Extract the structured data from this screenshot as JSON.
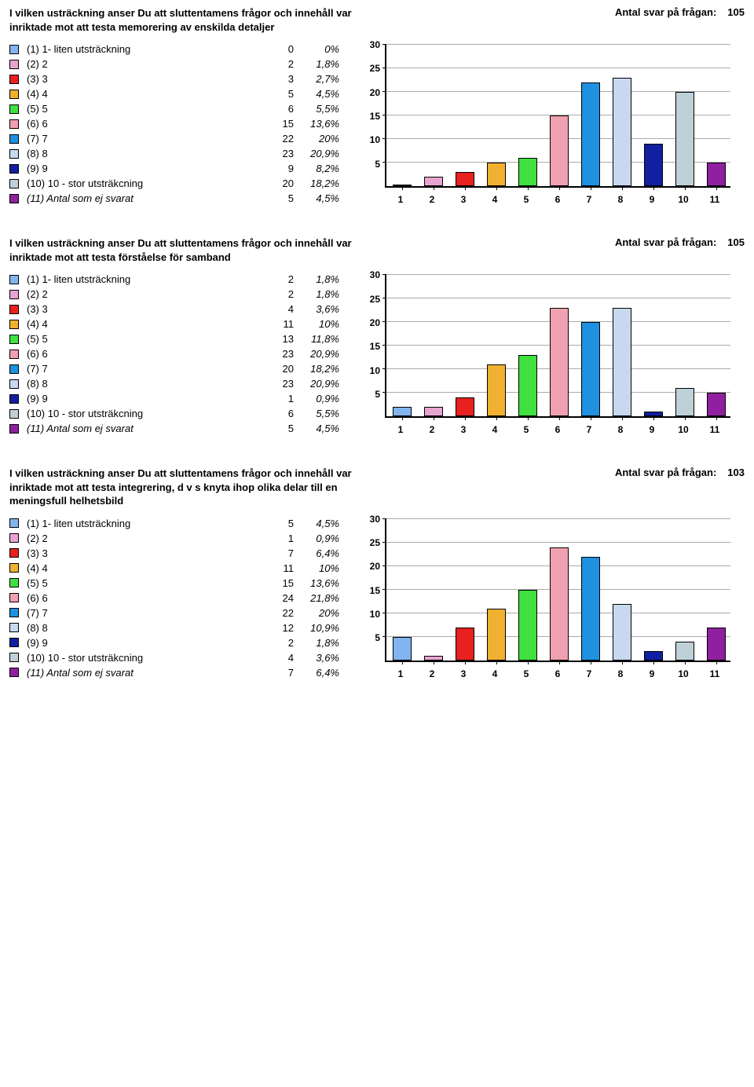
{
  "labels": {
    "response_prefix": "Antal svar på frågan:"
  },
  "colors": [
    "#82b4f0",
    "#e8a4d0",
    "#e82020",
    "#f0b030",
    "#40e040",
    "#f0a0b0",
    "#2090e0",
    "#c8d8f0",
    "#1020a0",
    "#c0d0d8",
    "#9020a0"
  ],
  "legend_labels": [
    "(1) 1- liten utsträckning",
    "(2) 2",
    "(3) 3",
    "(4) 4",
    "(5) 5",
    "(6) 6",
    "(7) 7",
    "(8) 8",
    "(9) 9",
    "(10) 10 - stor utsträkcning",
    "(11) Antal som ej svarat"
  ],
  "legend_italic_last": true,
  "x_categories": [
    "1",
    "2",
    "3",
    "4",
    "5",
    "6",
    "7",
    "8",
    "9",
    "10",
    "11"
  ],
  "chart_style": {
    "ylim_max": 30,
    "ytick_step": 5,
    "grid_color": "#888888",
    "background": "#ffffff",
    "bar_width_ratio": 0.62,
    "font_size_axis": 12,
    "font_weight_axis": "bold"
  },
  "sections": [
    {
      "title": "I vilken usträckning anser Du att sluttentamens frågor och innehåll var inriktade mot att testa memorering av enskilda detaljer",
      "n": "105",
      "items": [
        {
          "count": "0",
          "pct": "0%"
        },
        {
          "count": "2",
          "pct": "1,8%"
        },
        {
          "count": "3",
          "pct": "2,7%"
        },
        {
          "count": "5",
          "pct": "4,5%"
        },
        {
          "count": "6",
          "pct": "5,5%"
        },
        {
          "count": "15",
          "pct": "13,6%"
        },
        {
          "count": "22",
          "pct": "20%"
        },
        {
          "count": "23",
          "pct": "20,9%"
        },
        {
          "count": "9",
          "pct": "8,2%"
        },
        {
          "count": "20",
          "pct": "18,2%"
        },
        {
          "count": "5",
          "pct": "4,5%"
        }
      ],
      "values": [
        0,
        2,
        3,
        5,
        6,
        15,
        22,
        23,
        9,
        20,
        5
      ]
    },
    {
      "title": "I vilken usträckning anser Du att sluttentamens frågor och innehåll var inriktade mot att testa förståelse för samband",
      "n": "105",
      "items": [
        {
          "count": "2",
          "pct": "1,8%"
        },
        {
          "count": "2",
          "pct": "1,8%"
        },
        {
          "count": "4",
          "pct": "3,6%"
        },
        {
          "count": "11",
          "pct": "10%"
        },
        {
          "count": "13",
          "pct": "11,8%"
        },
        {
          "count": "23",
          "pct": "20,9%"
        },
        {
          "count": "20",
          "pct": "18,2%"
        },
        {
          "count": "23",
          "pct": "20,9%"
        },
        {
          "count": "1",
          "pct": "0,9%"
        },
        {
          "count": "6",
          "pct": "5,5%"
        },
        {
          "count": "5",
          "pct": "4,5%"
        }
      ],
      "values": [
        2,
        2,
        4,
        11,
        13,
        23,
        20,
        23,
        1,
        6,
        5
      ]
    },
    {
      "title": "I vilken usträckning anser Du att sluttentamens frågor och innehåll var inriktade mot att testa integrering, d v s knyta ihop olika delar till en meningsfull helhetsbild",
      "n": "103",
      "items": [
        {
          "count": "5",
          "pct": "4,5%"
        },
        {
          "count": "1",
          "pct": "0,9%"
        },
        {
          "count": "7",
          "pct": "6,4%"
        },
        {
          "count": "11",
          "pct": "10%"
        },
        {
          "count": "15",
          "pct": "13,6%"
        },
        {
          "count": "24",
          "pct": "21,8%"
        },
        {
          "count": "22",
          "pct": "20%"
        },
        {
          "count": "12",
          "pct": "10,9%"
        },
        {
          "count": "2",
          "pct": "1,8%"
        },
        {
          "count": "4",
          "pct": "3,6%"
        },
        {
          "count": "7",
          "pct": "6,4%"
        }
      ],
      "values": [
        5,
        1,
        7,
        11,
        15,
        24,
        22,
        12,
        2,
        4,
        7
      ]
    }
  ]
}
